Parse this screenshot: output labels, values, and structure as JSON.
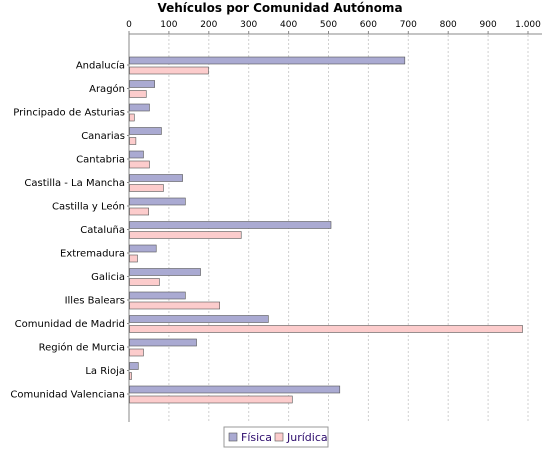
{
  "chart_data": {
    "type": "bar",
    "orientation": "horizontal",
    "title": "Vehículos por Comunidad Autónoma",
    "xlabel": "",
    "ylabel": "",
    "xlim": [
      0,
      1000
    ],
    "x_ticks": [
      0,
      100,
      200,
      300,
      400,
      500,
      600,
      700,
      800,
      900,
      1000
    ],
    "x_tick_labels": [
      "0",
      "100",
      "200",
      "300",
      "400",
      "500",
      "600",
      "700",
      "800",
      "900",
      "1.000"
    ],
    "x_axis_position": "top",
    "grid": "vertical dashed",
    "legend_position": "bottom-center",
    "categories": [
      "Andalucía",
      "Aragón",
      "Principado de Asturias",
      "Canarias",
      "Cantabria",
      "Castilla - La Mancha",
      "Castilla y León",
      "Cataluña",
      "Extremadura",
      "Galicia",
      "Illes Balears",
      "Comunidad de Madrid",
      "Región de Murcia",
      "La Rioja",
      "Comunidad Valenciana"
    ],
    "series": [
      {
        "name": "Física",
        "color": "#aaaad2",
        "values": [
          690,
          63,
          50,
          80,
          35,
          133,
          140,
          505,
          67,
          178,
          140,
          348,
          168,
          22,
          527
        ]
      },
      {
        "name": "Jurídica",
        "color": "#fccccc",
        "values": [
          198,
          42,
          12,
          16,
          50,
          85,
          48,
          280,
          20,
          75,
          226,
          985,
          35,
          5,
          408
        ]
      }
    ]
  }
}
